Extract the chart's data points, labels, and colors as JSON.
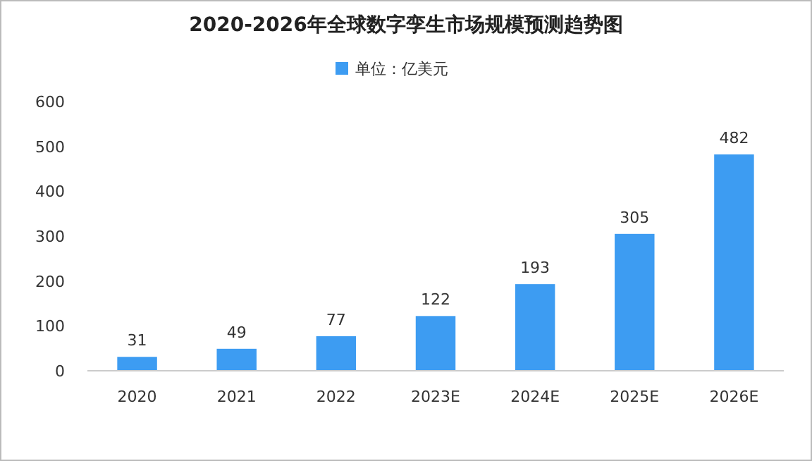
{
  "chart_data": {
    "type": "bar",
    "title": "2020-2026年全球数字孪生市场规模预测趋势图",
    "categories": [
      "2020",
      "2021",
      "2022",
      "2023E",
      "2024E",
      "2025E",
      "2026E"
    ],
    "series": [
      {
        "name": "单位：亿美元",
        "color": "#3d9cf2",
        "values": [
          31,
          49,
          77,
          122,
          193,
          305,
          482
        ]
      }
    ],
    "ylim": [
      0,
      600
    ],
    "yticks": [
      0,
      100,
      200,
      300,
      400,
      500,
      600
    ],
    "grid": false,
    "legend": "top",
    "data_labels": true
  }
}
